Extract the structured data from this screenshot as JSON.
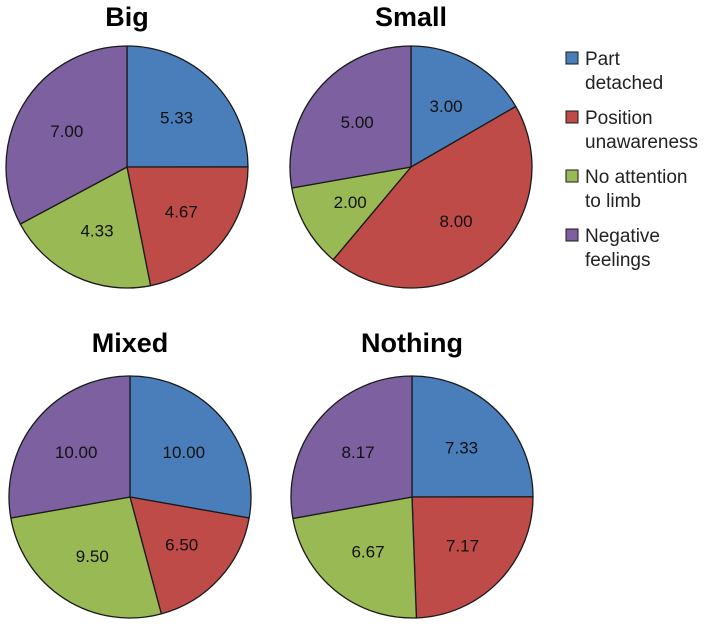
{
  "colors": {
    "Part detached": "#4a7ebb",
    "Position unawareness": "#be4b48",
    "No attention to limb": "#98b954",
    "Negative feelings": "#7d60a0"
  },
  "legend": [
    {
      "name": "Part detached",
      "lines": [
        "Part",
        "detached"
      ]
    },
    {
      "name": "Position unawareness",
      "lines": [
        "Position",
        "unawareness"
      ]
    },
    {
      "name": "No attention to limb",
      "lines": [
        "No attention",
        "to limb"
      ]
    },
    {
      "name": "Negative feelings",
      "lines": [
        "Negative",
        "feelings"
      ]
    }
  ],
  "chart_data": [
    {
      "type": "pie",
      "title": "Big",
      "categories": [
        "Part detached",
        "Position unawareness",
        "No attention to limb",
        "Negative feelings"
      ],
      "values": [
        5.33,
        4.67,
        4.33,
        7.0
      ],
      "labels": [
        "5.33",
        "4.67",
        "4.33",
        "7.00"
      ]
    },
    {
      "type": "pie",
      "title": "Small",
      "categories": [
        "Part detached",
        "Position unawareness",
        "No attention to limb",
        "Negative feelings"
      ],
      "values": [
        3.0,
        8.0,
        2.0,
        5.0
      ],
      "labels": [
        "3.00",
        "8.00",
        "2.00",
        "5.00"
      ]
    },
    {
      "type": "pie",
      "title": "Mixed",
      "categories": [
        "Part detached",
        "Position unawareness",
        "No attention to limb",
        "Negative feelings"
      ],
      "values": [
        10.0,
        6.5,
        9.5,
        10.0
      ],
      "labels": [
        "10.00",
        "6.50",
        "9.50",
        "10.00"
      ]
    },
    {
      "type": "pie",
      "title": "Nothing",
      "categories": [
        "Part detached",
        "Position unawareness",
        "No attention to limb",
        "Negative feelings"
      ],
      "values": [
        7.33,
        7.17,
        6.67,
        8.17
      ],
      "labels": [
        "7.33",
        "7.17",
        "6.67",
        "8.17"
      ]
    }
  ]
}
